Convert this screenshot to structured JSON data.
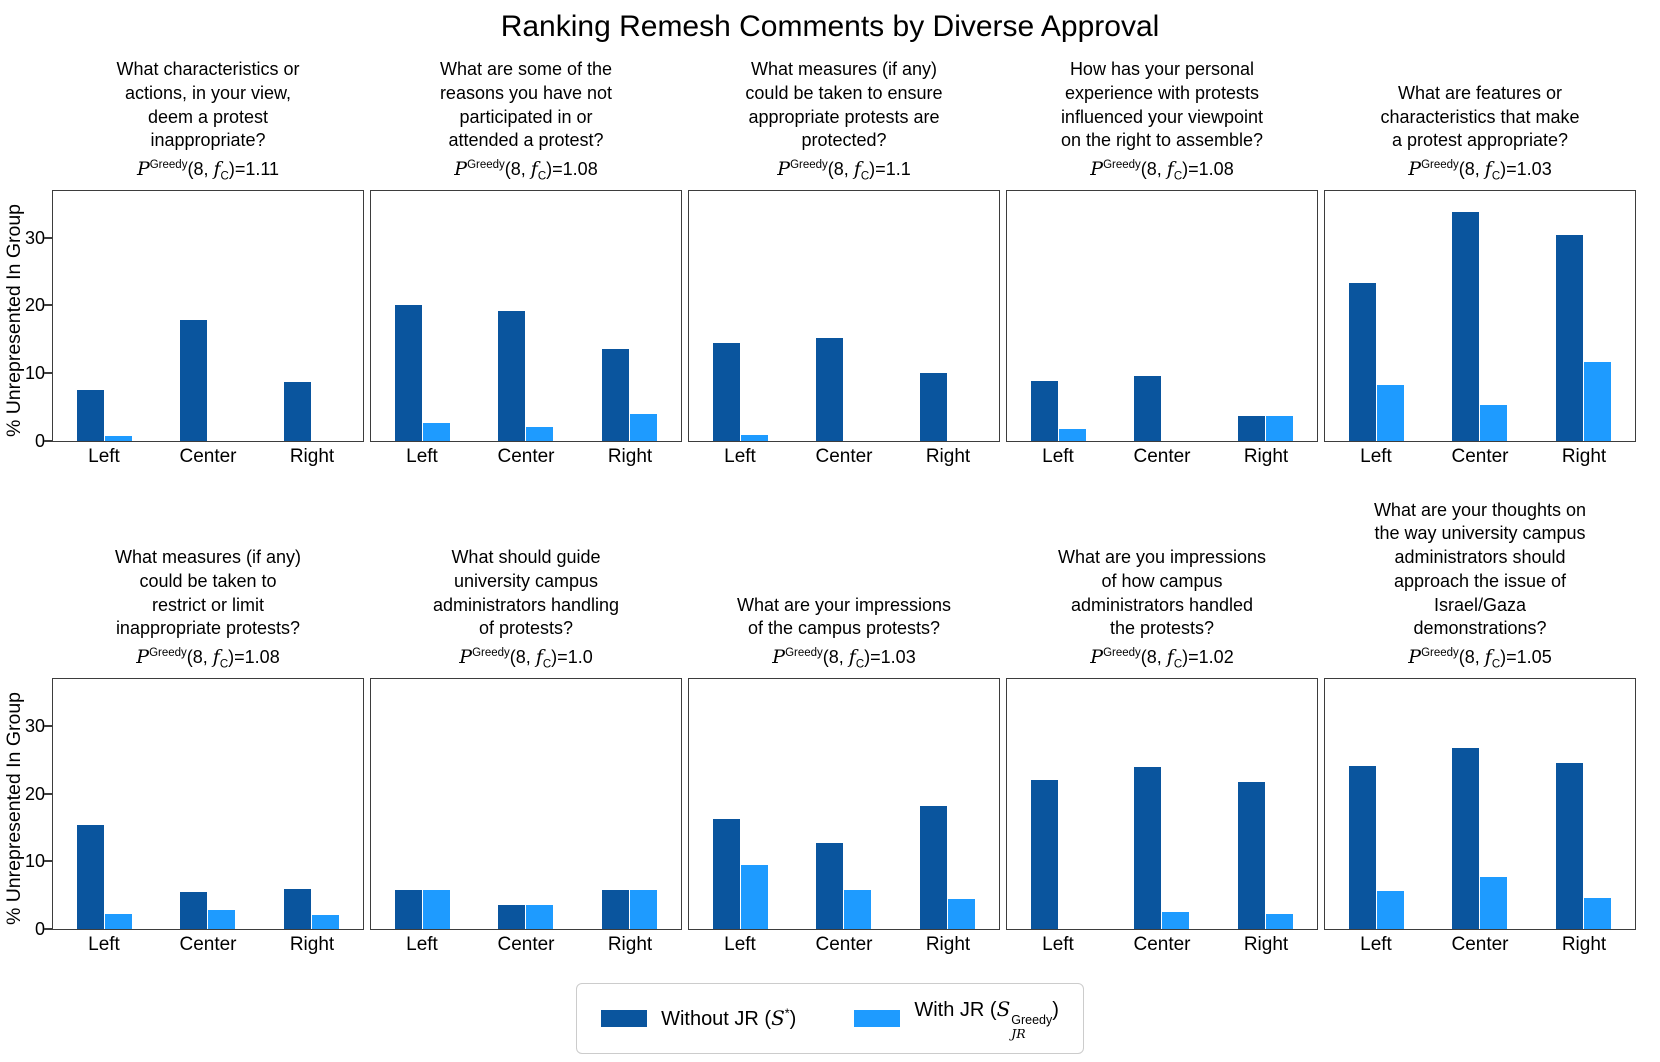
{
  "chart_data": {
    "type": "bar",
    "grouped": true,
    "title": "Ranking Remesh Comments by Diverse Approval",
    "ylabel": "% Unrepresented In Group",
    "categories": [
      "Left",
      "Center",
      "Right"
    ],
    "yticks": [
      0,
      10,
      20,
      30
    ],
    "ylim": [
      0,
      37
    ],
    "grid": false,
    "legend": [
      "Without JR (S*)",
      "With JR (S_JR^Greedy)"
    ],
    "legend_position": "bottom center",
    "series_colors": {
      "without_jr": "#0a559e",
      "with_jr": "#1e9bff"
    },
    "panels": [
      {
        "question": "What characteristics or\nactions, in your view,\ndeem a protest\ninappropriate?",
        "p_value": "1.11",
        "series": [
          {
            "name": "Without JR",
            "values": [
              7.5,
              17.8,
              8.7
            ]
          },
          {
            "name": "With JR",
            "values": [
              0.7,
              0,
              0
            ]
          }
        ]
      },
      {
        "question": "What are some of the\nreasons you have not\nparticipated in or\nattended a protest?",
        "p_value": "1.08",
        "series": [
          {
            "name": "Without JR",
            "values": [
              20.0,
              19.2,
              13.5
            ]
          },
          {
            "name": "With JR",
            "values": [
              2.6,
              2.0,
              4.0
            ]
          }
        ]
      },
      {
        "question": "What measures (if any)\ncould be taken to ensure\nappropriate protests are\nprotected?",
        "p_value": "1.1",
        "series": [
          {
            "name": "Without JR",
            "values": [
              14.5,
              15.2,
              10.0
            ]
          },
          {
            "name": "With JR",
            "values": [
              0.8,
              0,
              0
            ]
          }
        ]
      },
      {
        "question": "How has your personal\nexperience with protests\ninfluenced your viewpoint\non the right to assemble?",
        "p_value": "1.08",
        "series": [
          {
            "name": "Without JR",
            "values": [
              8.8,
              9.5,
              3.6
            ]
          },
          {
            "name": "With JR",
            "values": [
              1.7,
              0,
              3.6
            ]
          }
        ]
      },
      {
        "question": "What are features or\ncharacteristics that make\na protest appropriate?",
        "p_value": "1.03",
        "series": [
          {
            "name": "Without JR",
            "values": [
              23.4,
              33.8,
              30.4
            ]
          },
          {
            "name": "With JR",
            "values": [
              8.2,
              5.3,
              11.7
            ]
          }
        ]
      },
      {
        "question": "What measures (if any)\ncould be taken to\nrestrict or limit\ninappropriate protests?",
        "p_value": "1.08",
        "series": [
          {
            "name": "Without JR",
            "values": [
              15.3,
              5.4,
              5.9
            ]
          },
          {
            "name": "With JR",
            "values": [
              2.2,
              2.7,
              2.0
            ]
          }
        ]
      },
      {
        "question": "What should guide\nuniversity campus\nadministrators handling\nof protests?",
        "p_value": "1.0",
        "series": [
          {
            "name": "Without JR",
            "values": [
              5.8,
              3.5,
              5.8
            ]
          },
          {
            "name": "With JR",
            "values": [
              5.8,
              3.5,
              5.8
            ]
          }
        ]
      },
      {
        "question": "What are your impressions\nof the campus protests?",
        "p_value": "1.03",
        "series": [
          {
            "name": "Without JR",
            "values": [
              16.2,
              12.7,
              18.1
            ]
          },
          {
            "name": "With JR",
            "values": [
              9.5,
              5.8,
              4.4
            ]
          }
        ]
      },
      {
        "question": "What are you impressions\nof how campus\nadministrators handled\nthe protests?",
        "p_value": "1.02",
        "series": [
          {
            "name": "Without JR",
            "values": [
              22.0,
              23.9,
              21.7
            ]
          },
          {
            "name": "With JR",
            "values": [
              0,
              2.5,
              2.2
            ]
          }
        ]
      },
      {
        "question": "What are your thoughts on\nthe way university campus\nadministrators should\napproach the issue of\nIsrael/Gaza\ndemonstrations?",
        "p_value": "1.05",
        "series": [
          {
            "name": "Without JR",
            "values": [
              24.1,
              26.7,
              24.5
            ]
          },
          {
            "name": "With JR",
            "values": [
              5.6,
              7.6,
              4.5
            ]
          }
        ]
      }
    ]
  },
  "p_formula": {
    "P": "P",
    "sup": "Greedy",
    "open": "(8, ",
    "f": "f",
    "fsub": "C",
    "eq": ")="
  },
  "legend_render": {
    "without_prefix": "Without JR (",
    "with_prefix": "With JR (",
    "s_symbol": "S",
    "without_sup": "*",
    "with_sup": "Greedy",
    "with_sub": "JR",
    "close_paren": ")"
  }
}
